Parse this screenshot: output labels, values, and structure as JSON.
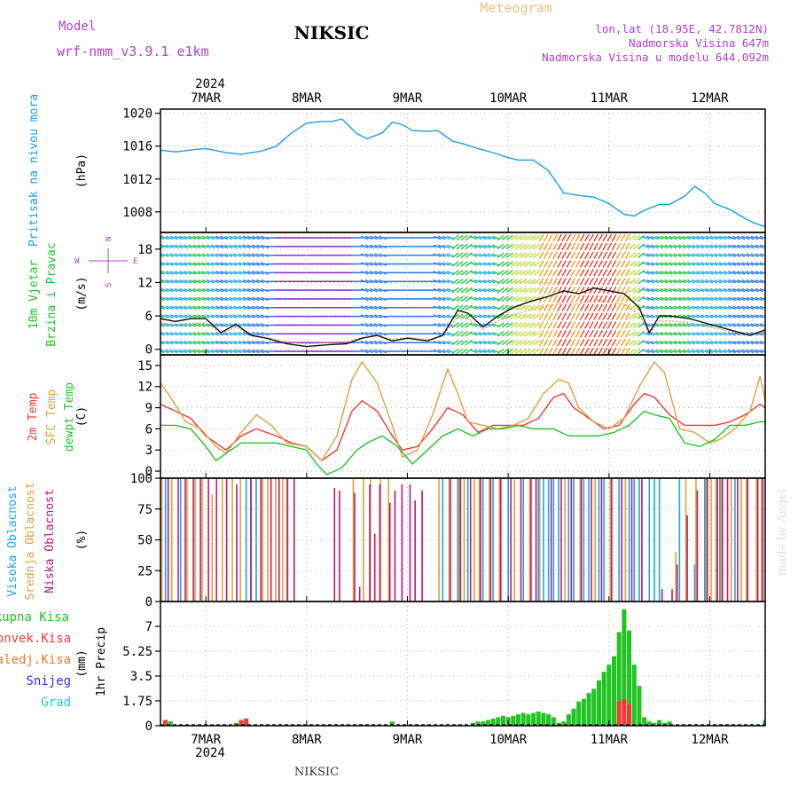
{
  "header": {
    "model_label": "Model",
    "model_name": "wrf-nmm_v3.9.1  e1km",
    "station": "NIKSIC",
    "product": "Meteogram",
    "lonlat": "lon,lat (18.95E, 42.7812N)",
    "elevation": "Nadmorska Visina 647m",
    "model_elevation": "Nadmorska Visina u modelu 644.092m",
    "year_top": "2024",
    "year_bottom": "2024",
    "footer_station": "NIKSIC",
    "credit": "made by Angel"
  },
  "colors": {
    "pressure": "#1a9fe0",
    "temp2m": "#f03a3a",
    "sfc": "#e0a040",
    "dewpt": "#22c42a",
    "visoka": "#1aa6e6",
    "srednja": "#d9a531",
    "niska": "#c2157f",
    "ukupna": "#22c422",
    "konvek": "#f03a3a",
    "zaledj": "#f07a20",
    "snijeg": "#3333dd",
    "grad": "#22cccc",
    "purple_text": "#b040d0"
  },
  "chart_data": [
    {
      "type": "line",
      "panel": "pressure",
      "ylabel_lines": [
        "Pritisak na nivou mora"
      ],
      "unit": "(hPa)",
      "x_start_day": 6.55,
      "x_end_day": 12.55,
      "ylim": [
        1005.5,
        1020.5
      ],
      "yticks": [
        1008,
        1012,
        1016,
        1020
      ],
      "grid": true,
      "categories": [
        "7MAR",
        "8MAR",
        "9MAR",
        "10MAR",
        "11MAR",
        "12MAR"
      ],
      "series": [
        {
          "color": "pressure",
          "x": [
            6.55,
            6.7,
            6.9,
            7.0,
            7.2,
            7.35,
            7.55,
            7.7,
            7.85,
            8.0,
            8.15,
            8.25,
            8.35,
            8.5,
            8.6,
            8.75,
            8.85,
            8.95,
            9.05,
            9.2,
            9.3,
            9.45,
            9.55,
            9.7,
            9.85,
            10.0,
            10.1,
            10.25,
            10.4,
            10.55,
            10.7,
            10.85,
            11.0,
            11.15,
            11.25,
            11.35,
            11.5,
            11.6,
            11.75,
            11.85,
            11.95,
            12.05,
            12.2,
            12.35,
            12.45,
            12.55
          ],
          "values": [
            1015.5,
            1015.3,
            1015.6,
            1015.7,
            1015.2,
            1015.0,
            1015.4,
            1016.0,
            1017.6,
            1018.8,
            1019.0,
            1019.0,
            1019.3,
            1017.5,
            1016.9,
            1017.6,
            1018.9,
            1018.6,
            1017.9,
            1017.8,
            1017.9,
            1016.6,
            1016.3,
            1015.7,
            1015.2,
            1014.6,
            1014.3,
            1014.3,
            1013.0,
            1010.3,
            1010.0,
            1009.8,
            1009.0,
            1007.7,
            1007.5,
            1008.2,
            1008.9,
            1008.9,
            1009.9,
            1011.1,
            1010.3,
            1009.0,
            1008.3,
            1007.2,
            1006.6,
            1006.2
          ]
        }
      ]
    },
    {
      "type": "line",
      "panel": "wind",
      "ylabel_lines": [
        "10m Vjetar",
        "Brzina i Pravac"
      ],
      "unit": "(m/s)",
      "ylim": [
        -1,
        21
      ],
      "yticks": [
        0,
        6,
        12,
        18
      ],
      "grid": true,
      "compass": {
        "top": "N",
        "left": "W",
        "right": "E",
        "bottom": "S"
      },
      "series": [
        {
          "name": "brzina",
          "color": "#111111",
          "x": [
            6.55,
            6.7,
            6.85,
            7.0,
            7.15,
            7.3,
            7.45,
            7.6,
            7.8,
            8.0,
            8.2,
            8.4,
            8.55,
            8.7,
            8.85,
            9.0,
            9.2,
            9.35,
            9.5,
            9.6,
            9.75,
            9.9,
            10.05,
            10.2,
            10.4,
            10.55,
            10.7,
            10.85,
            11.0,
            11.15,
            11.3,
            11.4,
            11.5,
            11.6,
            11.8,
            12.0,
            12.2,
            12.4,
            12.55
          ],
          "values": [
            5.5,
            5.0,
            5.5,
            5.5,
            3.0,
            4.5,
            2.5,
            2.0,
            1.0,
            0.5,
            0.8,
            1.0,
            2.0,
            2.5,
            1.5,
            2.0,
            1.5,
            2.5,
            7.0,
            6.5,
            4.0,
            6.0,
            7.5,
            8.5,
            9.5,
            10.5,
            10.0,
            11.0,
            10.5,
            10.0,
            7.5,
            3.0,
            6.0,
            6.0,
            5.5,
            4.5,
            3.5,
            2.5,
            3.5
          ]
        }
      ]
    },
    {
      "type": "line",
      "panel": "temperature",
      "ylabel_lines": [
        "2m Temp",
        "SFC Temp",
        "dewpt Temp"
      ],
      "unit": "(C)",
      "ylim": [
        -1,
        16.5
      ],
      "yticks": [
        0,
        3,
        6,
        9,
        12,
        15
      ],
      "grid": true,
      "series": [
        {
          "name": "2m Temp",
          "color": "temp2m",
          "x": [
            6.55,
            6.7,
            6.85,
            7.0,
            7.1,
            7.2,
            7.35,
            7.5,
            7.7,
            7.85,
            8.0,
            8.15,
            8.3,
            8.45,
            8.55,
            8.7,
            8.85,
            8.95,
            9.1,
            9.25,
            9.4,
            9.55,
            9.7,
            9.85,
            10.0,
            10.15,
            10.3,
            10.45,
            10.55,
            10.65,
            10.8,
            10.95,
            11.1,
            11.25,
            11.35,
            11.45,
            11.6,
            11.75,
            11.9,
            12.05,
            12.2,
            12.35,
            12.5,
            12.55
          ],
          "values": [
            9.5,
            8.5,
            7.5,
            5.0,
            4.0,
            3.0,
            5.0,
            6.0,
            5.0,
            4.0,
            3.5,
            1.5,
            3.0,
            8.5,
            10.0,
            8.5,
            5.0,
            3.0,
            3.5,
            6.0,
            9.0,
            8.0,
            5.5,
            6.5,
            6.5,
            6.5,
            7.5,
            10.5,
            11.0,
            9.0,
            7.5,
            6.0,
            6.5,
            9.5,
            11.0,
            10.5,
            8.0,
            6.5,
            6.5,
            6.5,
            7.0,
            8.0,
            9.5,
            9.0
          ]
        },
        {
          "name": "SFC Temp",
          "color": "sfc",
          "x": [
            6.55,
            6.65,
            6.8,
            6.95,
            7.1,
            7.2,
            7.35,
            7.5,
            7.65,
            7.8,
            8.0,
            8.15,
            8.3,
            8.45,
            8.55,
            8.7,
            8.85,
            8.95,
            9.1,
            9.25,
            9.4,
            9.5,
            9.6,
            9.75,
            9.9,
            10.05,
            10.2,
            10.35,
            10.5,
            10.6,
            10.7,
            10.85,
            11.0,
            11.15,
            11.3,
            11.45,
            11.55,
            11.7,
            11.85,
            12.0,
            12.1,
            12.25,
            12.4,
            12.5,
            12.55
          ],
          "values": [
            12.5,
            10.5,
            7.0,
            6.0,
            3.5,
            2.5,
            5.5,
            8.0,
            6.5,
            4.0,
            3.5,
            1.5,
            5.0,
            13.0,
            15.5,
            12.5,
            6.5,
            2.0,
            3.0,
            8.0,
            14.5,
            11.0,
            7.0,
            6.5,
            6.0,
            6.5,
            7.5,
            11.0,
            13.0,
            12.5,
            9.0,
            7.0,
            6.0,
            7.5,
            12.0,
            15.5,
            14.0,
            6.0,
            5.5,
            4.0,
            4.5,
            6.0,
            8.5,
            13.5,
            10.0
          ]
        },
        {
          "name": "dewpt Temp",
          "color": "dewpt",
          "x": [
            6.55,
            6.7,
            6.85,
            7.0,
            7.1,
            7.2,
            7.35,
            7.5,
            7.7,
            7.85,
            8.0,
            8.1,
            8.2,
            8.35,
            8.5,
            8.6,
            8.75,
            8.9,
            9.05,
            9.2,
            9.35,
            9.5,
            9.65,
            9.8,
            9.95,
            10.1,
            10.25,
            10.45,
            10.6,
            10.75,
            10.9,
            11.05,
            11.2,
            11.35,
            11.45,
            11.6,
            11.75,
            11.9,
            12.05,
            12.2,
            12.35,
            12.5,
            12.55
          ],
          "values": [
            6.5,
            6.5,
            6.0,
            3.5,
            1.5,
            2.5,
            4.0,
            4.0,
            4.0,
            3.5,
            3.0,
            1.0,
            -0.5,
            0.5,
            3.0,
            4.0,
            5.0,
            3.5,
            1.0,
            3.0,
            5.0,
            6.0,
            5.0,
            6.0,
            6.0,
            6.5,
            6.0,
            6.0,
            5.0,
            5.0,
            5.0,
            5.5,
            6.5,
            8.5,
            8.0,
            7.5,
            4.0,
            3.5,
            4.5,
            6.5,
            6.5,
            7.0,
            7.0
          ]
        }
      ]
    },
    {
      "type": "bar",
      "panel": "cloud",
      "ylabel_lines": [
        "Visoka Oblacnost",
        "Srednja Oblacnost",
        "Niska Oblacnost"
      ],
      "unit": "(%)",
      "ylim": [
        0,
        100
      ],
      "yticks": [
        0,
        25,
        50,
        75,
        100
      ],
      "grid": true,
      "series": [
        {
          "name": "Visoka Oblacnost",
          "color": "visoka",
          "x": [
            6.6,
            6.75,
            7.4,
            7.45,
            7.5,
            9.35,
            9.5,
            9.6,
            9.75,
            9.85,
            10.0,
            10.15,
            10.3,
            10.4,
            10.35,
            10.45,
            10.5,
            10.6,
            10.65,
            10.75,
            10.8,
            10.9,
            10.95,
            11.1,
            11.2,
            11.25,
            11.3,
            11.4,
            11.45,
            11.5,
            11.7,
            11.85,
            11.95,
            12.1,
            12.25
          ],
          "values": [
            100,
            100,
            100,
            100,
            100,
            100,
            100,
            100,
            100,
            100,
            100,
            100,
            100,
            100,
            100,
            100,
            100,
            100,
            100,
            100,
            100,
            100,
            100,
            100,
            100,
            100,
            100,
            100,
            100,
            100,
            100,
            30,
            100,
            100,
            100
          ]
        },
        {
          "name": "Srednja Oblacnost",
          "color": "srednja",
          "x": [
            6.55,
            6.65,
            6.8,
            6.88,
            6.95,
            7.05,
            7.15,
            7.25,
            7.33,
            7.55,
            7.6,
            7.68,
            7.75,
            7.8,
            8.45,
            8.55,
            8.62,
            8.72,
            8.8,
            9.3,
            9.4,
            9.5,
            9.55,
            9.65,
            9.7,
            9.8,
            9.9,
            10.05,
            10.2,
            10.3,
            10.55,
            10.7,
            10.85,
            11.0,
            11.15,
            11.65,
            11.75,
            11.85,
            11.95,
            12.0,
            12.05,
            12.1,
            12.2,
            12.3,
            12.35,
            12.45,
            12.5,
            12.55
          ],
          "values": [
            100,
            100,
            100,
            100,
            100,
            87,
            100,
            100,
            100,
            100,
            100,
            100,
            100,
            100,
            100,
            100,
            100,
            100,
            100,
            100,
            100,
            100,
            100,
            100,
            100,
            100,
            100,
            100,
            100,
            100,
            100,
            100,
            100,
            100,
            100,
            40,
            100,
            100,
            100,
            100,
            100,
            100,
            100,
            100,
            100,
            100,
            100,
            100
          ]
        },
        {
          "name": "Niska Oblacnost",
          "color": "niska",
          "x": [
            6.6,
            6.7,
            6.77,
            6.85,
            6.92,
            7.0,
            7.08,
            7.18,
            7.28,
            7.42,
            7.52,
            7.62,
            7.7,
            7.78,
            7.85,
            8.25,
            8.3,
            8.45,
            8.5,
            8.6,
            8.65,
            8.7,
            8.8,
            8.85,
            8.92,
            9.0,
            9.05,
            9.12,
            9.4,
            9.5,
            9.6,
            9.7,
            9.8,
            9.9,
            10.0,
            10.1,
            10.2,
            10.25,
            10.4,
            10.5,
            10.6,
            10.7,
            10.8,
            10.9,
            11.0,
            11.1,
            11.2,
            11.3,
            11.5,
            11.6,
            11.65,
            11.75,
            11.85,
            11.95,
            12.05,
            12.1,
            12.15,
            12.25,
            12.35,
            12.45,
            12.5
          ],
          "values": [
            100,
            100,
            100,
            100,
            100,
            100,
            100,
            100,
            95,
            100,
            100,
            100,
            100,
            100,
            100,
            92,
            90,
            88,
            12,
            95,
            55,
            95,
            80,
            90,
            95,
            95,
            82,
            90,
            100,
            100,
            100,
            100,
            100,
            100,
            100,
            100,
            100,
            100,
            100,
            100,
            100,
            100,
            100,
            100,
            100,
            100,
            100,
            100,
            10,
            10,
            30,
            70,
            90,
            100,
            100,
            100,
            100,
            100,
            100,
            100,
            100
          ]
        }
      ]
    },
    {
      "type": "bar",
      "panel": "precip",
      "ylabel_lines": [
        "1hr Precip"
      ],
      "unit": "(mm)",
      "legend": [
        "Ukupna Kisa",
        "Konvek.Kisa",
        "Zaledj.Kisa",
        "Snijeg",
        "Grad"
      ],
      "ylim": [
        0,
        8.75
      ],
      "yticks": [
        0,
        1.75,
        3.5,
        5.25,
        7
      ],
      "yticklabels": [
        "0",
        "1.75",
        "3.5",
        "5.25",
        "7"
      ],
      "grid": true,
      "categories": [
        "7MAR",
        "8MAR",
        "9MAR",
        "10MAR",
        "11MAR",
        "12MAR"
      ],
      "series": [
        {
          "name": "Ukupna Kisa",
          "color": "ukupna",
          "x": [
            6.6,
            6.65,
            7.3,
            7.35,
            7.4,
            8.85,
            9.65,
            9.7,
            9.75,
            9.8,
            9.85,
            9.9,
            9.95,
            10.0,
            10.05,
            10.1,
            10.15,
            10.2,
            10.25,
            10.3,
            10.35,
            10.4,
            10.45,
            10.5,
            10.55,
            10.6,
            10.65,
            10.7,
            10.75,
            10.8,
            10.85,
            10.9,
            10.95,
            11.0,
            11.05,
            11.1,
            11.15,
            11.2,
            11.25,
            11.3,
            11.35,
            11.4,
            11.45,
            11.5,
            11.55,
            11.6,
            12.55
          ],
          "values": [
            0.4,
            0.3,
            0.2,
            0.4,
            0.3,
            0.3,
            0.2,
            0.3,
            0.3,
            0.4,
            0.5,
            0.6,
            0.7,
            0.6,
            0.7,
            0.8,
            0.9,
            0.8,
            0.9,
            1.0,
            0.9,
            0.8,
            0.6,
            0.2,
            0.3,
            0.8,
            1.2,
            1.7,
            1.9,
            2.3,
            2.6,
            3.2,
            3.8,
            4.3,
            4.9,
            6.6,
            8.2,
            6.7,
            4.3,
            2.8,
            0.6,
            0.3,
            0.2,
            0.4,
            0.2,
            0.3,
            0.4
          ]
        },
        {
          "name": "Konvek.Kisa",
          "color": "konvek",
          "x": [
            6.6,
            7.35,
            7.4,
            11.1,
            11.15,
            11.2
          ],
          "values": [
            0.4,
            0.4,
            0.5,
            1.7,
            1.9,
            1.5
          ]
        }
      ]
    }
  ]
}
